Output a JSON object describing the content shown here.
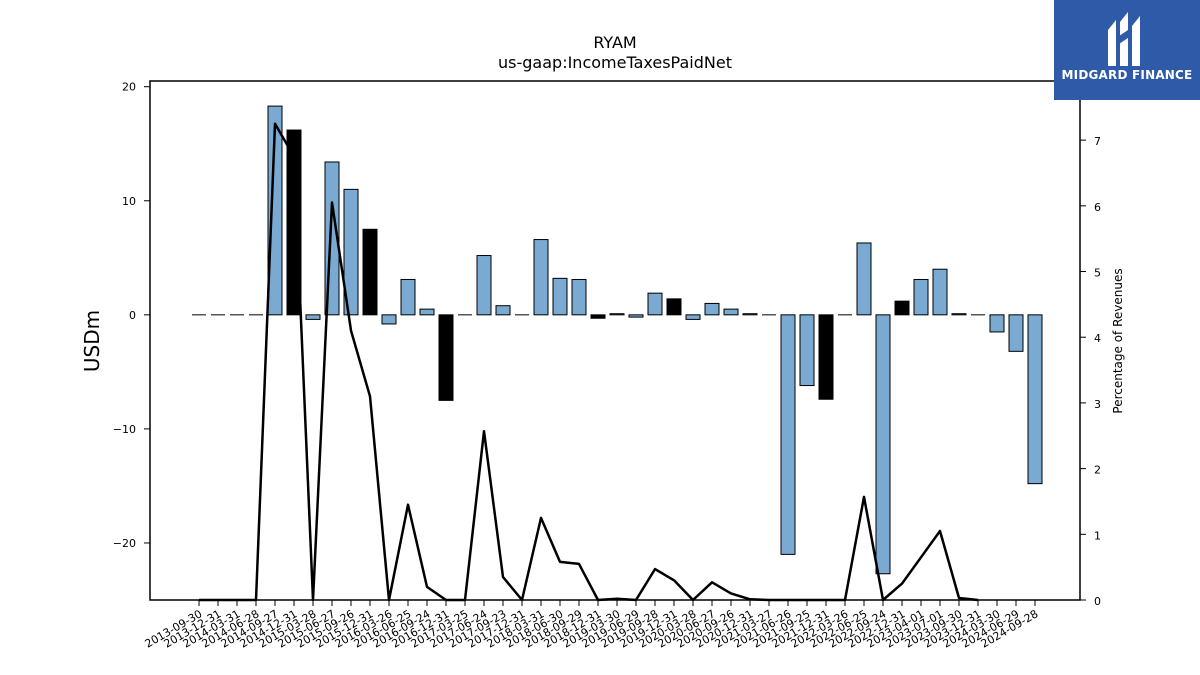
{
  "chart_data": {
    "type": "bar",
    "title": "RYAM",
    "subtitle": "us-gaap:IncomeTaxesPaidNet",
    "ylabel": "USDm",
    "y2label": "Percentage of Revenues",
    "ylim": [
      -25,
      20.5
    ],
    "y2lim": [
      0,
      7.9
    ],
    "yticks": [
      20,
      10,
      0,
      -10,
      -20
    ],
    "y2ticks": [
      0,
      1,
      2,
      3,
      4,
      5,
      6,
      7
    ],
    "colors": {
      "bar": "#7aaad2",
      "bar_highlight": "#000000",
      "line": "#000000"
    },
    "categories": [
      "2013-09-30",
      "2013-12-31",
      "2014-03-31",
      "2014-06-28",
      "2014-09-27",
      "2014-12-31",
      "2015-03-28",
      "2015-06-27",
      "2015-09-26",
      "2015-12-31",
      "2016-03-26",
      "2016-06-25",
      "2016-09-24",
      "2016-12-31",
      "2017-03-25",
      "2017-06-24",
      "2017-09-23",
      "2017-12-31",
      "2018-03-31",
      "2018-06-30",
      "2018-09-29",
      "2018-12-31",
      "2019-03-30",
      "2019-06-29",
      "2019-09-28",
      "2019-12-31",
      "2020-03-28",
      "2020-06-27",
      "2020-09-26",
      "2020-12-31",
      "2021-03-27",
      "2021-06-26",
      "2021-09-25",
      "2021-12-31",
      "2022-03-26",
      "2022-06-25",
      "2022-09-24",
      "2022-12-31",
      "2023-04-01",
      "2023-07-01",
      "2023-09-30",
      "2023-12-31",
      "2024-03-30",
      "2024-06-29",
      "2024-09-28"
    ],
    "values": [
      0,
      0,
      0,
      0,
      18.3,
      16.2,
      -0.4,
      13.4,
      11.0,
      7.5,
      -0.8,
      3.1,
      0.5,
      -7.5,
      0,
      5.2,
      0.8,
      0,
      6.6,
      3.2,
      3.1,
      -0.3,
      0.1,
      -0.2,
      1.9,
      1.4,
      -0.4,
      1.0,
      0.5,
      0.1,
      0,
      -21.0,
      -6.2,
      -7.4,
      0,
      6.3,
      -22.7,
      1.2,
      3.1,
      4.0,
      0.1,
      0,
      -1.5,
      -3.2,
      -14.8
    ],
    "highlight": [
      false,
      false,
      false,
      false,
      false,
      true,
      false,
      false,
      false,
      true,
      false,
      false,
      false,
      true,
      false,
      false,
      false,
      false,
      false,
      false,
      false,
      true,
      false,
      false,
      false,
      true,
      false,
      false,
      false,
      false,
      false,
      false,
      false,
      true,
      false,
      false,
      false,
      true,
      false,
      false,
      false,
      false,
      false,
      false,
      false
    ],
    "line_series": {
      "name": "Percentage of Revenues",
      "values": [
        0,
        0,
        0,
        0,
        7.25,
        6.75,
        0,
        6.05,
        4.1,
        3.1,
        0,
        1.45,
        0.2,
        0,
        0,
        2.57,
        0.35,
        0,
        1.25,
        0.58,
        0.55,
        0,
        0.02,
        0,
        0.47,
        0.3,
        0,
        0.27,
        0.1,
        0.01,
        0,
        0,
        0,
        0,
        0,
        1.57,
        0,
        0.25,
        0.65,
        1.05,
        0.03,
        0,
        null,
        null,
        null
      ]
    }
  },
  "branding": {
    "logo_text": "MIDGARD FINANCE"
  }
}
